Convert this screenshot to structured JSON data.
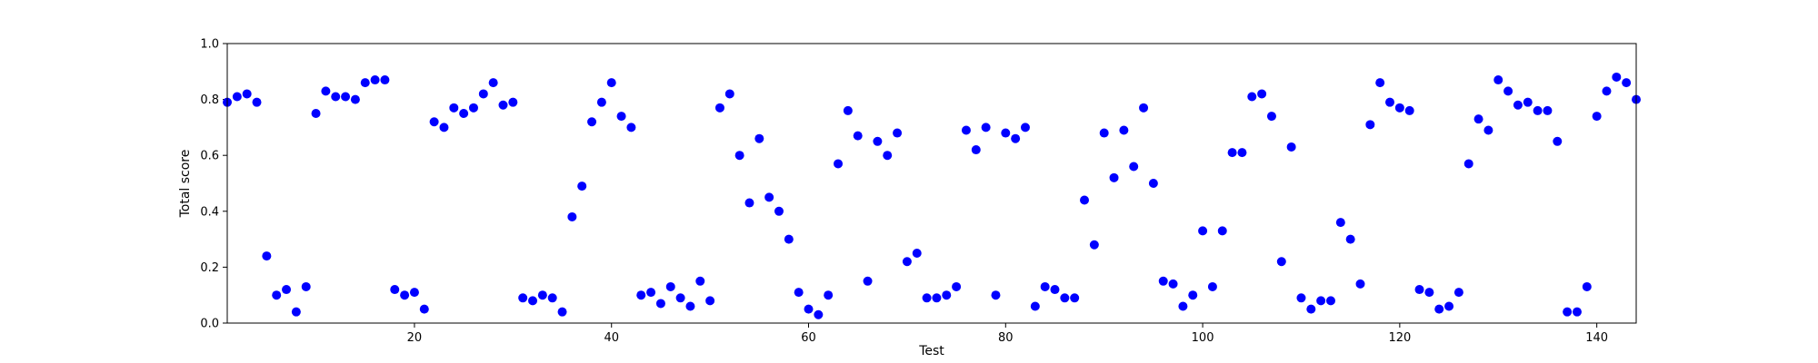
{
  "chart_data": {
    "type": "scatter",
    "title": "",
    "xlabel": "Test",
    "ylabel": "Total score",
    "xlim": [
      1,
      144
    ],
    "ylim": [
      0.0,
      1.0
    ],
    "xticks": [
      20,
      40,
      60,
      80,
      100,
      120,
      140
    ],
    "xtick_labels": [
      "20",
      "40",
      "60",
      "80",
      "100",
      "120",
      "140"
    ],
    "yticks": [
      0.0,
      0.2,
      0.4,
      0.6,
      0.8,
      1.0
    ],
    "ytick_labels": [
      "0.0",
      "0.2",
      "0.4",
      "0.6",
      "0.8",
      "1.0"
    ],
    "grid": false,
    "marker_color": "#0000ff",
    "x": [
      1,
      2,
      3,
      4,
      5,
      6,
      7,
      8,
      9,
      10,
      11,
      12,
      13,
      14,
      15,
      16,
      17,
      18,
      19,
      20,
      21,
      22,
      23,
      24,
      25,
      26,
      27,
      28,
      29,
      30,
      31,
      32,
      33,
      34,
      35,
      36,
      37,
      38,
      39,
      40,
      41,
      42,
      43,
      44,
      45,
      46,
      47,
      48,
      49,
      50,
      51,
      52,
      53,
      54,
      55,
      56,
      57,
      58,
      59,
      60,
      61,
      62,
      63,
      64,
      65,
      66,
      67,
      68,
      69,
      70,
      71,
      72,
      73,
      74,
      75,
      76,
      77,
      78,
      79,
      80,
      81,
      82,
      83,
      84,
      85,
      86,
      87,
      88,
      89,
      90,
      91,
      92,
      93,
      94,
      95,
      96,
      97,
      98,
      99,
      100,
      101,
      102,
      103,
      104,
      105,
      106,
      107,
      108,
      109,
      110,
      111,
      112,
      113,
      114,
      115,
      116,
      117,
      118,
      119,
      120,
      121,
      122,
      123,
      124,
      125,
      126,
      127,
      128,
      129,
      130,
      131,
      132,
      133,
      134,
      135,
      136,
      137,
      138,
      139,
      140,
      141,
      142,
      143,
      144
    ],
    "y": [
      0.79,
      0.81,
      0.82,
      0.79,
      0.24,
      0.1,
      0.12,
      0.04,
      0.13,
      0.75,
      0.83,
      0.81,
      0.81,
      0.8,
      0.86,
      0.87,
      0.87,
      0.12,
      0.1,
      0.11,
      0.05,
      0.72,
      0.7,
      0.77,
      0.75,
      0.77,
      0.82,
      0.86,
      0.78,
      0.79,
      0.09,
      0.08,
      0.1,
      0.09,
      0.04,
      0.38,
      0.49,
      0.72,
      0.79,
      0.86,
      0.74,
      0.7,
      0.1,
      0.11,
      0.07,
      0.13,
      0.09,
      0.06,
      0.15,
      0.08,
      0.77,
      0.82,
      0.6,
      0.43,
      0.66,
      0.45,
      0.4,
      0.3,
      0.11,
      0.05,
      0.03,
      0.1,
      0.57,
      0.76,
      0.67,
      0.15,
      0.65,
      0.6,
      0.68,
      0.22,
      0.25,
      0.09,
      0.09,
      0.1,
      0.13,
      0.69,
      0.62,
      0.7,
      0.1,
      0.68,
      0.66,
      0.7,
      0.06,
      0.13,
      0.12,
      0.09,
      0.09,
      0.44,
      0.28,
      0.68,
      0.52,
      0.69,
      0.56,
      0.77,
      0.5,
      0.15,
      0.14,
      0.06,
      0.1,
      0.33,
      0.13,
      0.33,
      0.61,
      0.61,
      0.81,
      0.82,
      0.74,
      0.22,
      0.63,
      0.09,
      0.05,
      0.08,
      0.08,
      0.36,
      0.3,
      0.14,
      0.71,
      0.86,
      0.79,
      0.77,
      0.76,
      0.12,
      0.11,
      0.05,
      0.06,
      0.11,
      0.57,
      0.73,
      0.69,
      0.87,
      0.83,
      0.78,
      0.79,
      0.76,
      0.76,
      0.65,
      0.04,
      0.04,
      0.13,
      0.74,
      0.83,
      0.88,
      0.86,
      0.8
    ]
  }
}
